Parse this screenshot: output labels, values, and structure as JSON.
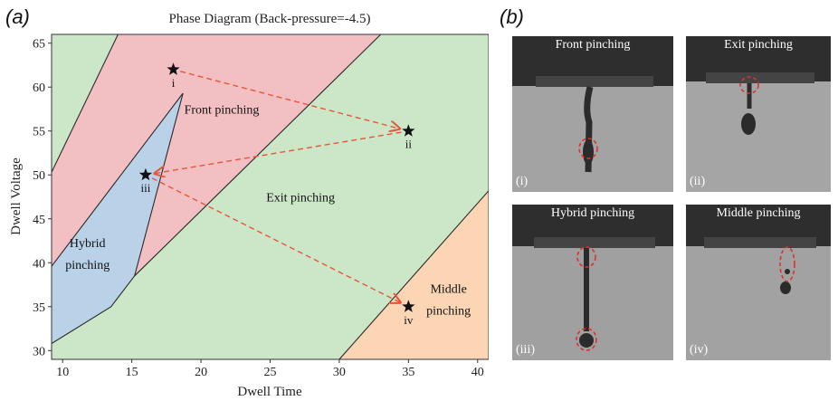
{
  "figure": {
    "panel_a_label": "(a)",
    "panel_b_label": "(b)"
  },
  "chart_data": {
    "type": "area",
    "title": "Phase Diagram (Back-pressure=-4.5)",
    "xlabel": "Dwell Time",
    "ylabel": "Dwell Voltage",
    "xlim": [
      9.2,
      40.8
    ],
    "ylim": [
      29,
      66
    ],
    "xticks": [
      10,
      15,
      20,
      25,
      30,
      35,
      40
    ],
    "yticks": [
      30,
      35,
      40,
      45,
      50,
      55,
      60,
      65
    ],
    "grid": false,
    "regions": [
      {
        "name": "Front pinching",
        "label": "Front pinching",
        "color": "#f2bfc3",
        "polygon": [
          [
            9.2,
            50.3
          ],
          [
            14,
            66
          ],
          [
            33,
            66
          ],
          [
            15.2,
            38.5
          ],
          [
            18.7,
            59.3
          ],
          [
            9.2,
            39.6
          ]
        ]
      },
      {
        "name": "Hybrid pinching",
        "label_lines": [
          "Hybrid",
          "pinching"
        ],
        "color": "#b9d2e8",
        "polygon": [
          [
            9.2,
            39.6
          ],
          [
            18.7,
            59.3
          ],
          [
            15.2,
            38.5
          ],
          [
            13.5,
            35
          ],
          [
            9.2,
            30.8
          ]
        ]
      },
      {
        "name": "Exit pinching",
        "label": "Exit pinching",
        "color": "#cce6c8",
        "polygon": [
          [
            9.2,
            29
          ],
          [
            9.2,
            30.8
          ],
          [
            13.5,
            35
          ],
          [
            15.2,
            38.5
          ],
          [
            33,
            66
          ],
          [
            40.8,
            66
          ],
          [
            40.8,
            48.2
          ],
          [
            30,
            29
          ]
        ]
      },
      {
        "name": "Middle pinching",
        "label_lines": [
          "Middle",
          "pinching"
        ],
        "color": "#fbd5b4",
        "polygon": [
          [
            30,
            29
          ],
          [
            40.8,
            48.2
          ],
          [
            40.8,
            29
          ]
        ]
      }
    ],
    "left_region_color": "#cce6c8",
    "points": [
      {
        "label": "i",
        "x": 18,
        "y": 62
      },
      {
        "label": "ii",
        "x": 35,
        "y": 55
      },
      {
        "label": "iii",
        "x": 16,
        "y": 50
      },
      {
        "label": "iv",
        "x": 35,
        "y": 35
      }
    ],
    "arrows": [
      {
        "from": "i",
        "to": "ii"
      },
      {
        "from": "ii",
        "to": "iii"
      },
      {
        "from": "iii",
        "to": "iv"
      }
    ],
    "arrow_color": "#e8553a"
  },
  "photos": [
    {
      "title": "Front pinching",
      "index": "(i)"
    },
    {
      "title": "Exit pinching",
      "index": "(ii)"
    },
    {
      "title": "Hybrid pinching",
      "index": "(iii)"
    },
    {
      "title": "Middle pinching",
      "index": "(iv)"
    }
  ]
}
